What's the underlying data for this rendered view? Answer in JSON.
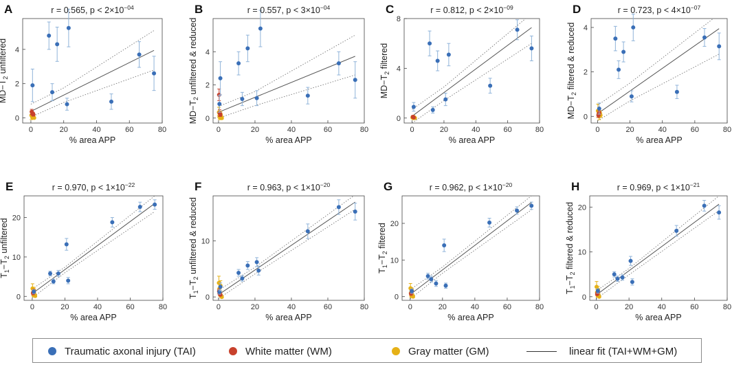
{
  "colors": {
    "tai": "#3a6fb7",
    "wm": "#c8412c",
    "gm": "#e6b117",
    "errorbar": "#8fb3d9",
    "fit": "#555555",
    "ci": "#777777",
    "axis": "#444444"
  },
  "legend": {
    "tai": "Traumatic axonal injury (TAI)",
    "wm": "White matter (WM)",
    "gm": "Gray matter (GM)",
    "fit": "linear fit (TAI+WM+GM)"
  },
  "chart_data": [
    {
      "panel": "A",
      "type": "scatter",
      "title": "r = 0.565, p < 2×10-04",
      "title_main": "r = 0.565, p < 2×10",
      "title_exp": "−04",
      "xlabel": "% area APP",
      "ylabel": "MD−T2 unfiltered",
      "ylabel_main": "MD−T",
      "ylabel_sub": "2",
      "ylabel_rest": " unfiltered",
      "xlim": [
        -5,
        80
      ],
      "ylim": [
        -0.3,
        5.8
      ],
      "xticks": [
        0,
        20,
        40,
        60,
        80
      ],
      "xticklabels": [
        "0",
        "20",
        "40",
        "60",
        "80"
      ],
      "yticks": [
        0,
        2,
        4
      ],
      "yticklabels": [
        "0",
        "2",
        "4"
      ],
      "fit": {
        "slope": 0.0475,
        "intercept": 0.38
      },
      "ci_lower": [
        [
          0,
          0.05
        ],
        [
          20,
          0.9
        ],
        [
          75,
          2.8
        ]
      ],
      "ci_upper": [
        [
          0,
          0.8
        ],
        [
          20,
          1.75
        ],
        [
          75,
          5.1
        ]
      ],
      "tai": [
        [
          1,
          1.9,
          0.95
        ],
        [
          11,
          4.8,
          0.8
        ],
        [
          13,
          1.5,
          0.5
        ],
        [
          16,
          4.3,
          1.0
        ],
        [
          22,
          0.8,
          0.35
        ],
        [
          23,
          5.25,
          1.1
        ],
        [
          49,
          0.95,
          0.45
        ],
        [
          66,
          3.7,
          0.75
        ],
        [
          75,
          2.6,
          1.0
        ]
      ],
      "wm": [
        [
          0.5,
          0.35,
          0.15
        ],
        [
          1,
          0.25,
          0.1
        ],
        [
          1.5,
          0.2,
          0.1
        ]
      ],
      "gm": [
        [
          0.3,
          0.15,
          0.25
        ],
        [
          0.7,
          0.08,
          0.1
        ],
        [
          1,
          0.02,
          0.08
        ],
        [
          1.3,
          0.12,
          0.1
        ],
        [
          1.6,
          0.05,
          0.06
        ],
        [
          2,
          0.0,
          0.05
        ]
      ]
    },
    {
      "panel": "B",
      "type": "scatter",
      "title": "r = 0.557, p < 3×10-04",
      "title_main": "r = 0.557, p < 3×10",
      "title_exp": "−04",
      "xlabel": "% area APP",
      "ylabel": "MD−T2 unfiltered & reduced",
      "ylabel_main": "MD−T",
      "ylabel_sub": "2",
      "ylabel_rest": " unfiltered & reduced",
      "xlim": [
        -3,
        80
      ],
      "ylim": [
        -0.3,
        6.0
      ],
      "xticks": [
        0,
        20,
        40,
        60,
        80
      ],
      "xticklabels": [
        "0",
        "20",
        "40",
        "60",
        "80"
      ],
      "yticks": [
        0,
        2,
        4
      ],
      "yticklabels": [
        "0",
        "2",
        "4"
      ],
      "fit": {
        "slope": 0.045,
        "intercept": 0.35
      },
      "ci_lower": [
        [
          0,
          0.0
        ],
        [
          20,
          0.75
        ],
        [
          75,
          2.6
        ]
      ],
      "ci_upper": [
        [
          0,
          0.7
        ],
        [
          20,
          1.6
        ],
        [
          75,
          5.0
        ]
      ],
      "tai": [
        [
          0.5,
          0.85,
          0.5
        ],
        [
          1,
          2.4,
          1.0
        ],
        [
          11,
          3.3,
          0.7
        ],
        [
          13,
          1.15,
          0.4
        ],
        [
          16,
          4.2,
          0.8
        ],
        [
          21,
          1.2,
          0.45
        ],
        [
          23,
          5.4,
          1.1
        ],
        [
          49,
          1.35,
          0.5
        ],
        [
          66,
          3.3,
          0.7
        ],
        [
          75,
          2.3,
          1.1
        ]
      ],
      "wm": [
        [
          0.3,
          1.4,
          0.35
        ],
        [
          0.6,
          0.3,
          0.2
        ],
        [
          1,
          0.2,
          0.1
        ]
      ],
      "gm": [
        [
          0.2,
          0.35,
          0.3
        ],
        [
          0.5,
          0.15,
          0.2
        ],
        [
          0.8,
          0.05,
          0.15
        ],
        [
          1.1,
          0.25,
          0.15
        ],
        [
          1.4,
          0.1,
          0.1
        ],
        [
          1.8,
          0.0,
          0.08
        ]
      ]
    },
    {
      "panel": "C",
      "type": "scatter",
      "title": "r = 0.812, p < 2×10-09",
      "title_main": "r = 0.812, p < 2×10",
      "title_exp": "−09",
      "xlabel": "% area APP",
      "ylabel": "MD−T2 filtered",
      "ylabel_main": "MD−T",
      "ylabel_sub": "2",
      "ylabel_rest": " filtered",
      "xlim": [
        -5,
        80
      ],
      "ylim": [
        -0.4,
        8.0
      ],
      "xticks": [
        0,
        20,
        40,
        60,
        80
      ],
      "xticklabels": [
        "0",
        "20",
        "40",
        "60",
        "80"
      ],
      "yticks": [
        0,
        4,
        8
      ],
      "yticklabels": [
        "0",
        "4",
        "8"
      ],
      "fit": {
        "slope": 0.095,
        "intercept": 0.15
      },
      "ci_lower": [
        [
          0,
          -0.4
        ],
        [
          20,
          1.4
        ],
        [
          75,
          6.0
        ]
      ],
      "ci_upper": [
        [
          0,
          0.7
        ],
        [
          20,
          2.5
        ],
        [
          75,
          8.4
        ]
      ],
      "tai": [
        [
          1,
          0.9,
          0.35
        ],
        [
          11,
          6.0,
          1.0
        ],
        [
          13,
          0.65,
          0.25
        ],
        [
          16,
          4.6,
          0.8
        ],
        [
          21,
          1.5,
          0.5
        ],
        [
          23,
          5.1,
          0.9
        ],
        [
          49,
          2.6,
          0.6
        ],
        [
          66,
          7.1,
          0.8
        ],
        [
          75,
          5.6,
          1.0
        ]
      ],
      "wm": [
        [
          0.5,
          0.1,
          0.1
        ],
        [
          1,
          0.05,
          0.08
        ]
      ],
      "gm": [
        [
          0.2,
          0.05,
          0.1
        ],
        [
          0.6,
          0.0,
          0.08
        ],
        [
          1,
          0.1,
          0.08
        ],
        [
          1.4,
          0.02,
          0.06
        ],
        [
          1.8,
          0.0,
          0.05
        ]
      ]
    },
    {
      "panel": "D",
      "type": "scatter",
      "title": "r = 0.723, p < 4×10-07",
      "title_main": "r = 0.723, p < 4×10",
      "title_exp": "−07",
      "xlabel": "% area APP",
      "ylabel": "MD−T2 filtered & reduced",
      "ylabel_main": "MD−T",
      "ylabel_sub": "2",
      "ylabel_rest": " filtered & reduced",
      "xlim": [
        -4,
        80
      ],
      "ylim": [
        -0.3,
        4.4
      ],
      "xticks": [
        0,
        20,
        40,
        60,
        80
      ],
      "xticklabels": [
        "0",
        "20",
        "40",
        "60",
        "80"
      ],
      "yticks": [
        0,
        2,
        4
      ],
      "yticklabels": [
        "0",
        "2",
        "4"
      ],
      "fit": {
        "slope": 0.051,
        "intercept": 0.12
      },
      "ci_lower": [
        [
          0,
          -0.2
        ],
        [
          20,
          0.7
        ],
        [
          75,
          2.8
        ]
      ],
      "ci_upper": [
        [
          0,
          0.5
        ],
        [
          20,
          1.5
        ],
        [
          75,
          4.6
        ]
      ],
      "tai": [
        [
          1,
          0.35,
          0.25
        ],
        [
          11,
          3.5,
          0.55
        ],
        [
          13,
          2.1,
          0.4
        ],
        [
          16,
          2.9,
          0.45
        ],
        [
          21,
          0.9,
          0.25
        ],
        [
          22,
          4.0,
          0.6
        ],
        [
          49,
          1.1,
          0.3
        ],
        [
          66,
          3.55,
          0.4
        ],
        [
          75,
          3.15,
          0.6
        ]
      ],
      "wm": [
        [
          0.5,
          0.05,
          0.1
        ],
        [
          1,
          0.15,
          0.1
        ]
      ],
      "gm": [
        [
          0.2,
          0.25,
          0.3
        ],
        [
          0.6,
          0.1,
          0.15
        ],
        [
          1,
          0.0,
          0.15
        ],
        [
          1.4,
          0.15,
          0.1
        ],
        [
          1.8,
          0.05,
          0.1
        ]
      ]
    },
    {
      "panel": "E",
      "type": "scatter",
      "title": "r = 0.970, p < 1×10-22",
      "title_main": "r = 0.970, p < 1×10",
      "title_exp": "−22",
      "xlabel": "% area APP",
      "ylabel": "T1−T2 unfiltered",
      "ylabel_main": "T",
      "ylabel_sub": "1",
      "ylabel_mid": "−T",
      "ylabel_sub2": "2",
      "ylabel_rest": " unfiltered",
      "xlim": [
        -5,
        80
      ],
      "ylim": [
        -1,
        25.5
      ],
      "xticks": [
        0,
        20,
        40,
        60,
        80
      ],
      "xticklabels": [
        "0",
        "20",
        "40",
        "60",
        "80"
      ],
      "yticks": [
        0,
        10,
        20
      ],
      "yticklabels": [
        "0",
        "10",
        "20"
      ],
      "fit": {
        "slope": 0.305,
        "intercept": 0.7
      },
      "ci_lower": [
        [
          0,
          -0.4
        ],
        [
          20,
          6.0
        ],
        [
          75,
          21.5
        ]
      ],
      "ci_upper": [
        [
          0,
          1.9
        ],
        [
          20,
          7.4
        ],
        [
          75,
          25.5
        ]
      ],
      "tai": [
        [
          1,
          1.2,
          0.5
        ],
        [
          11,
          5.8,
          0.6
        ],
        [
          13,
          3.8,
          0.6
        ],
        [
          16,
          5.8,
          0.8
        ],
        [
          21,
          13.2,
          1.5
        ],
        [
          22,
          4.0,
          0.8
        ],
        [
          49,
          18.8,
          1.2
        ],
        [
          66,
          22.7,
          1.2
        ],
        [
          75,
          23.3,
          1.2
        ]
      ],
      "wm": [
        [
          0.5,
          0.8,
          0.4
        ],
        [
          1,
          1.3,
          0.5
        ]
      ],
      "gm": [
        [
          0.2,
          2.0,
          1.2
        ],
        [
          0.5,
          1.0,
          0.6
        ],
        [
          0.8,
          0.3,
          0.4
        ],
        [
          1.1,
          1.6,
          0.7
        ],
        [
          1.4,
          0.5,
          0.4
        ],
        [
          1.8,
          0.1,
          0.3
        ]
      ]
    },
    {
      "panel": "F",
      "type": "scatter",
      "title": "r = 0.963, p < 1×10-20",
      "title_main": "r = 0.963, p < 1×10",
      "title_exp": "−20",
      "xlabel": "% area APP",
      "ylabel": "T1−T2 unfiltered & reduced",
      "ylabel_main": "T",
      "ylabel_sub": "1",
      "ylabel_mid": "−T",
      "ylabel_sub2": "2",
      "ylabel_rest": " unfiltered & reduced",
      "xlim": [
        -3,
        80
      ],
      "ylim": [
        -0.6,
        18
      ],
      "xticks": [
        0,
        20,
        40,
        60,
        80
      ],
      "xticklabels": [
        "0",
        "20",
        "40",
        "60",
        "80"
      ],
      "yticks": [
        0,
        10
      ],
      "yticklabels": [
        "0",
        "10"
      ],
      "fit": {
        "slope": 0.22,
        "intercept": 0.4
      },
      "ci_lower": [
        [
          0,
          -0.3
        ],
        [
          20,
          4.1
        ],
        [
          75,
          15.6
        ]
      ],
      "ci_upper": [
        [
          0,
          1.2
        ],
        [
          20,
          5.3
        ],
        [
          75,
          18.2
        ]
      ],
      "tai": [
        [
          0.5,
          0.9,
          0.4
        ],
        [
          1,
          1.8,
          0.7
        ],
        [
          11,
          4.3,
          0.6
        ],
        [
          13,
          3.3,
          0.5
        ],
        [
          16,
          5.6,
          0.7
        ],
        [
          21,
          6.2,
          0.8
        ],
        [
          22,
          4.7,
          0.8
        ],
        [
          49,
          11.7,
          1.3
        ],
        [
          66,
          16.0,
          1.3
        ],
        [
          75,
          15.2,
          1.5
        ]
      ],
      "wm": [
        [
          0.3,
          1.0,
          0.4
        ],
        [
          0.6,
          0.6,
          0.3
        ],
        [
          1,
          0.4,
          0.2
        ]
      ],
      "gm": [
        [
          0.2,
          2.5,
          1.2
        ],
        [
          0.5,
          1.5,
          0.8
        ],
        [
          0.8,
          0.5,
          0.4
        ],
        [
          1.1,
          2.0,
          0.9
        ],
        [
          1.4,
          0.2,
          0.3
        ],
        [
          1.8,
          0.0,
          0.2
        ]
      ]
    },
    {
      "panel": "G",
      "type": "scatter",
      "title": "r = 0.962, p < 1×10-20",
      "title_main": "r = 0.962, p < 1×10",
      "title_exp": "−20",
      "xlabel": "% area APP",
      "ylabel": "T1−T2 filtered",
      "ylabel_main": "T",
      "ylabel_sub": "1",
      "ylabel_mid": "−T",
      "ylabel_sub2": "2",
      "ylabel_rest": " filtered",
      "xlim": [
        -5,
        80
      ],
      "ylim": [
        -1,
        27.5
      ],
      "xticks": [
        0,
        20,
        40,
        60,
        80
      ],
      "xticklabels": [
        "0",
        "20",
        "40",
        "60",
        "80"
      ],
      "yticks": [
        0,
        10,
        20
      ],
      "yticklabels": [
        "0",
        "10",
        "20"
      ],
      "fit": {
        "slope": 0.335,
        "intercept": 0.6
      },
      "ci_lower": [
        [
          0,
          -0.6
        ],
        [
          20,
          6.4
        ],
        [
          75,
          23.7
        ]
      ],
      "ci_upper": [
        [
          0,
          1.9
        ],
        [
          20,
          8.1
        ],
        [
          75,
          27.5
        ]
      ],
      "tai": [
        [
          1,
          1.5,
          0.6
        ],
        [
          11,
          5.6,
          0.8
        ],
        [
          13,
          4.8,
          0.8
        ],
        [
          16,
          3.6,
          0.8
        ],
        [
          21,
          14.0,
          1.7
        ],
        [
          22,
          3.0,
          0.7
        ],
        [
          49,
          20.2,
          1.2
        ],
        [
          66,
          23.5,
          1.0
        ],
        [
          75,
          24.8,
          1.0
        ]
      ],
      "wm": [
        [
          0.5,
          0.8,
          0.4
        ],
        [
          1,
          1.5,
          0.5
        ]
      ],
      "gm": [
        [
          0.2,
          2.3,
          1.3
        ],
        [
          0.5,
          1.0,
          0.6
        ],
        [
          0.8,
          0.2,
          0.4
        ],
        [
          1.1,
          1.6,
          0.7
        ],
        [
          1.4,
          0.4,
          0.4
        ],
        [
          1.8,
          0.0,
          0.3
        ]
      ]
    },
    {
      "panel": "H",
      "type": "scatter",
      "title": "r = 0.969, p < 1×10-21",
      "title_main": "r = 0.969, p < 1×10",
      "title_exp": "−21",
      "xlabel": "% area APP",
      "ylabel": "T1−T2 filtered & reduced",
      "ylabel_main": "T",
      "ylabel_sub": "1",
      "ylabel_mid": "−T",
      "ylabel_sub2": "2",
      "ylabel_rest": " filtered & reduced",
      "xlim": [
        -4,
        80
      ],
      "ylim": [
        -0.8,
        22.5
      ],
      "xticks": [
        0,
        20,
        40,
        60,
        80
      ],
      "xticklabels": [
        "0",
        "20",
        "40",
        "60",
        "80"
      ],
      "yticks": [
        0,
        10,
        20
      ],
      "yticklabels": [
        "0",
        "10",
        "20"
      ],
      "fit": {
        "slope": 0.27,
        "intercept": 0.4
      },
      "ci_lower": [
        [
          0,
          -0.5
        ],
        [
          20,
          4.9
        ],
        [
          75,
          19.2
        ]
      ],
      "ci_upper": [
        [
          0,
          1.3
        ],
        [
          20,
          6.3
        ],
        [
          75,
          22.5
        ]
      ],
      "tai": [
        [
          1,
          1.3,
          0.5
        ],
        [
          11,
          5.0,
          0.6
        ],
        [
          13,
          4.0,
          0.6
        ],
        [
          16,
          4.3,
          0.6
        ],
        [
          21,
          8.0,
          1.0
        ],
        [
          22,
          3.3,
          0.7
        ],
        [
          49,
          14.7,
          1.2
        ],
        [
          66,
          20.3,
          1.2
        ],
        [
          75,
          18.8,
          1.5
        ]
      ],
      "wm": [
        [
          0.5,
          0.6,
          0.3
        ],
        [
          1,
          1.0,
          0.4
        ]
      ],
      "gm": [
        [
          0.2,
          2.2,
          1.2
        ],
        [
          0.5,
          1.0,
          0.6
        ],
        [
          0.8,
          0.3,
          0.4
        ],
        [
          1.1,
          1.6,
          0.7
        ],
        [
          1.4,
          0.4,
          0.3
        ],
        [
          1.8,
          0.0,
          0.2
        ]
      ]
    }
  ]
}
